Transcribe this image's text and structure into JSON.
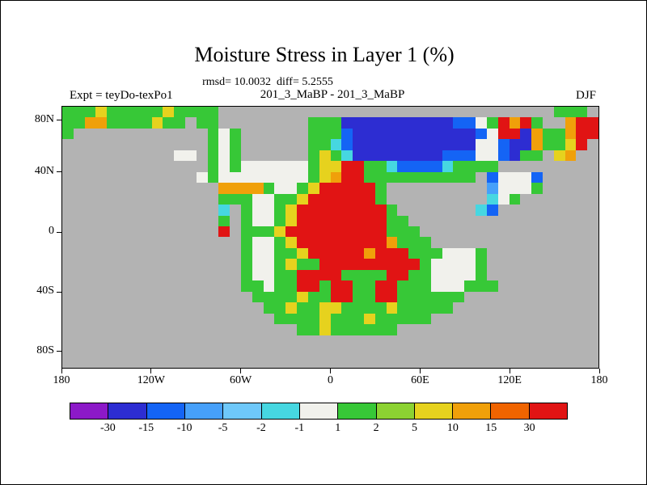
{
  "header": {
    "title": "Moisture Stress in Layer 1 (%)",
    "stats": "rmsd= 10.0032  diff= 5.2555",
    "expt": "Expt = teyDo-texPo1",
    "run": "201_3_MaBP - 201_3_MaBP",
    "season": "DJF"
  },
  "chart_data": {
    "type": "heatmap",
    "title": "Moisture Stress in Layer 1 (%)",
    "subtitle": "rmsd= 10.0032 diff= 5.2555",
    "left_label": "Expt = teyDo-texPo1",
    "center_label": "201_3_MaBP - 201_3_MaBP",
    "right_label": "DJF",
    "units": "%",
    "x_ticks": [
      {
        "label": "180",
        "f": 0.0
      },
      {
        "label": "120W",
        "f": 0.1667
      },
      {
        "label": "60W",
        "f": 0.3333
      },
      {
        "label": "0",
        "f": 0.5
      },
      {
        "label": "60E",
        "f": 0.6667
      },
      {
        "label": "120E",
        "f": 0.8333
      },
      {
        "label": "180",
        "f": 1.0
      }
    ],
    "y_ticks": [
      {
        "label": "80N",
        "f": 0.055
      },
      {
        "label": "40N",
        "f": 0.252
      },
      {
        "label": "0",
        "f": 0.48
      },
      {
        "label": "40S",
        "f": 0.708
      },
      {
        "label": "80S",
        "f": 0.935
      }
    ],
    "colorbar_labels": [
      "-30",
      "-15",
      "-10",
      "-5",
      "-2",
      "-1",
      "1",
      "2",
      "5",
      "10",
      "15",
      "30"
    ],
    "colorbar_colors": [
      "#8c19c8",
      "#2d2dd2",
      "#1464f5",
      "#46a0fa",
      "#6ec8fa",
      "#46d7e1",
      "#f1f1ec",
      "#37c837",
      "#8cd232",
      "#e6d21e",
      "#f0a00a",
      "#f06400",
      "#e11414"
    ],
    "no_data_color": "#b3b3b3",
    "palette": {
      ".": "#b3b3b3",
      "P": "#8c19c8",
      "I": "#2d2dd2",
      "B": "#1464f5",
      "M": "#46a0fa",
      "L": "#6ec8fa",
      "C": "#46d7e1",
      "W": "#f1f1ec",
      "G": "#37c837",
      "g": "#8cd232",
      "Y": "#e6d21e",
      "O": "#f0a00a",
      "o": "#f06400",
      "R": "#e11414"
    },
    "grid_cols": 48,
    "grid_rows": 24,
    "grid": [
      "GGGYGGGGGYGGGG..............................GGG",
      "GGOOGGGGYGG.GG........GGGIIIIIIIIIIBBWGRORG..ORR",
      "G............GWG......GGGBIIIIIIIIIIIBWRRIOGGORR",
      ".............GWG......GGCBIIIIIIIIIIIWWBIIOGGYR",
      "..........WW.GWG......GYGCIIIIIIIIBBBWWBIGG.YO",
      ".............GWGWWWWWWGYYRRGGCBBBBCGGGG",
      "............WGWWWWWWWWGYORRGGGGGGGGGG.BWWWB",
      "..............OOOOGWWGYRRRRRG.........MWWWG",
      "..............GGGWWGGYRRRRRRG.........CWG",
      "..............C.GWWGYRRRRRRRRG.......CB",
      "..............G.GWWGYRRRRRRRRGG",
      "..............R.GGGYRRRRRRRRRGGG",
      "................GWWGYRRRRRRRROGGG",
      "................GWWGGYRRRRRORRRGGGWWWG",
      "................GWWGYGGRRRRRRRRRGWWWWG",
      "................GWWGGRRRRGGGGRRGGWWWWG",
      "................GGWGGRRGRRGGRRGGGWWWGGG",
      ".................GGGGYGGRRGGRRGGGGGG",
      "..................GGYGGYYGGGGYGGGGG",
      "...................GGGGYGGGYGGGGG",
      ".....................GGYGGGGGG",
      "",
      "",
      ""
    ]
  }
}
